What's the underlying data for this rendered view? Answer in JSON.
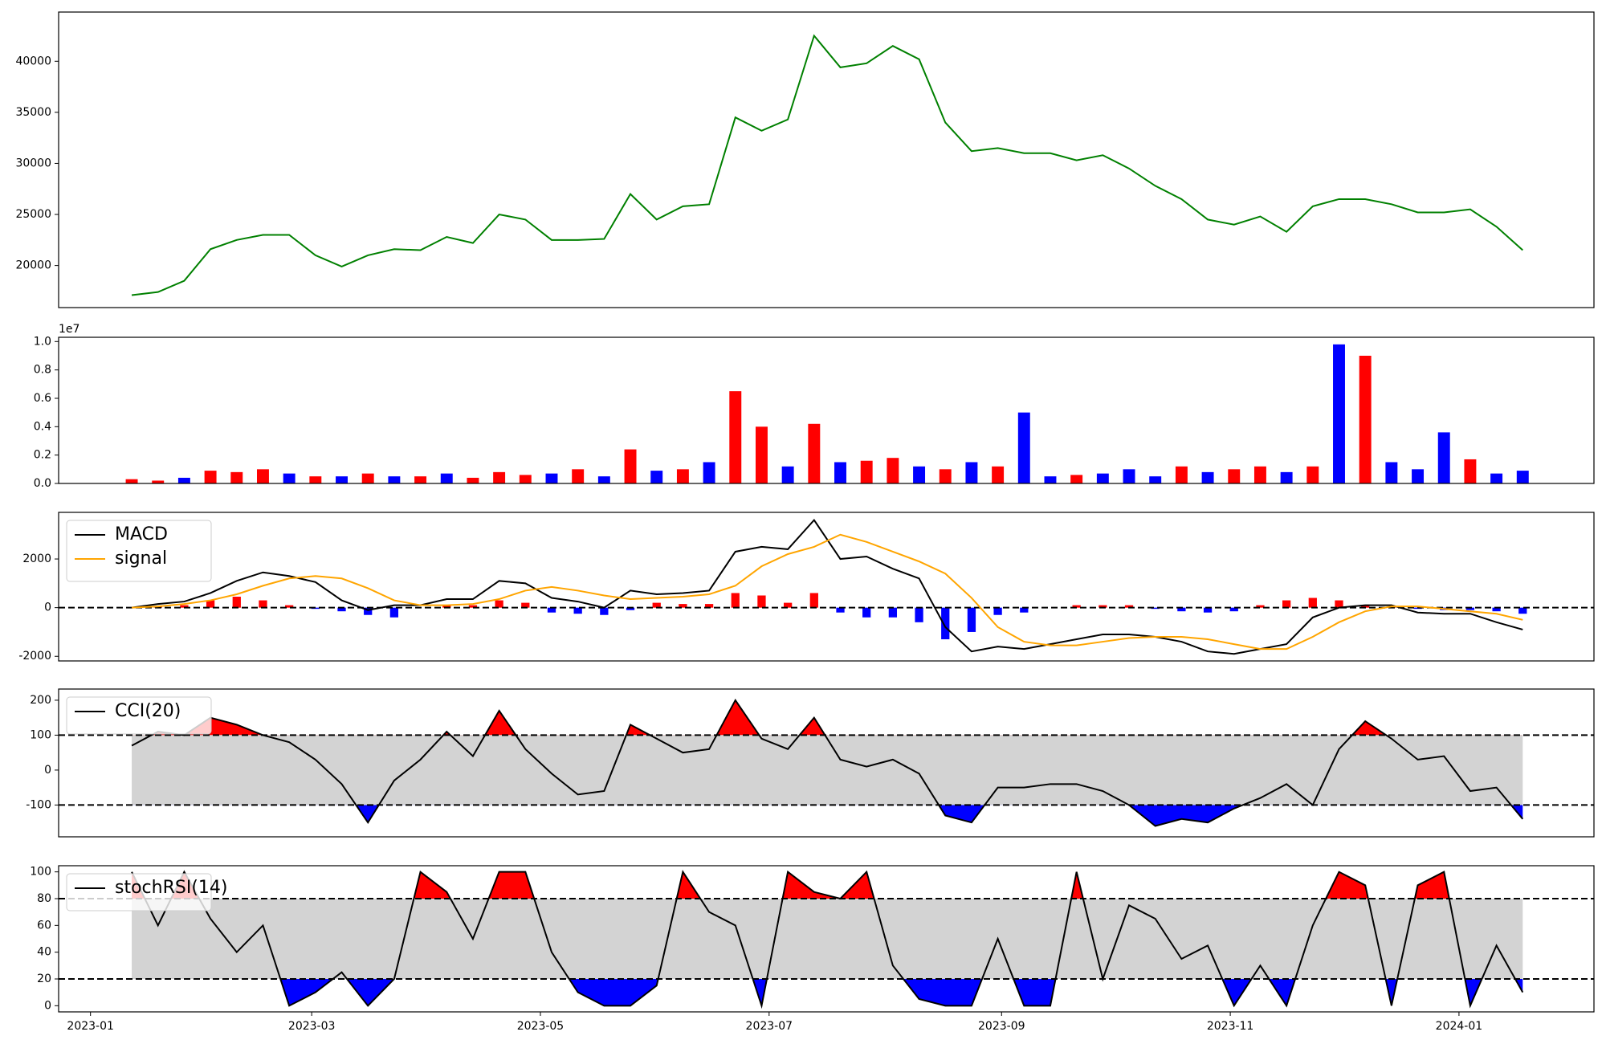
{
  "chart_data": [
    {
      "type": "line",
      "x": [
        11,
        18,
        25,
        32,
        39,
        46,
        53,
        60,
        67,
        74,
        81,
        88,
        95,
        102,
        109,
        116,
        123,
        130,
        137,
        144,
        151,
        158,
        165,
        172,
        179,
        186,
        193,
        200,
        207,
        214,
        221,
        228,
        235,
        242,
        249,
        256,
        263,
        270,
        277,
        284,
        291,
        298,
        305,
        312,
        319,
        326,
        333,
        340,
        347,
        354,
        361,
        368,
        375,
        382
      ],
      "xlim": [
        -8.5,
        401
      ],
      "ylim": [
        15880,
        44820
      ],
      "yticks": [
        20000,
        25000,
        30000,
        35000,
        40000
      ],
      "series": [
        {
          "color": "#008000",
          "values": [
            17100,
            17400,
            18500,
            21600,
            22500,
            23000,
            23000,
            21000,
            19900,
            21000,
            21600,
            21500,
            22800,
            22200,
            25000,
            24500,
            22500,
            22500,
            22600,
            27000,
            24500,
            25800,
            26000,
            34500,
            33200,
            34300,
            42500,
            39400,
            39800,
            41500,
            40200,
            34000,
            31200,
            31500,
            31000,
            31000,
            30300,
            30800,
            29500,
            27800,
            26500,
            24500,
            24000,
            24800,
            23300,
            25800,
            26500,
            26500,
            26000,
            25200,
            25200,
            25500,
            23800,
            21500
          ]
        }
      ]
    },
    {
      "type": "bar",
      "ylim": [
        0,
        1.03
      ],
      "yticks": [
        {
          "value": 0,
          "label": "0.0"
        },
        {
          "value": 0.2,
          "label": "0.2"
        },
        {
          "value": 0.4,
          "label": "0.4"
        },
        {
          "value": 0.6,
          "label": "0.6"
        },
        {
          "value": 0.8,
          "label": "0.8"
        },
        {
          "value": 1,
          "label": "1.0"
        }
      ],
      "y_offset_label": "1e7",
      "values": [
        0.03,
        0.02,
        0.04,
        0.09,
        0.08,
        0.1,
        0.07,
        0.05,
        0.05,
        0.07,
        0.05,
        0.05,
        0.07,
        0.04,
        0.08,
        0.06,
        0.07,
        0.1,
        0.05,
        0.24,
        0.09,
        0.1,
        0.15,
        0.65,
        0.4,
        0.12,
        0.42,
        0.15,
        0.16,
        0.18,
        0.12,
        0.1,
        0.15,
        0.12,
        0.5,
        0.05,
        0.06,
        0.07,
        0.1,
        0.05,
        0.12,
        0.08,
        0.1,
        0.12,
        0.08,
        0.12,
        0.98,
        0.9,
        0.15,
        0.1,
        0.36,
        0.17,
        0.07,
        0.09
      ],
      "colors": [
        "red",
        "red",
        "blue",
        "red",
        "red",
        "red",
        "blue",
        "red",
        "blue",
        "red",
        "blue",
        "red",
        "blue",
        "red",
        "red",
        "red",
        "blue",
        "red",
        "blue",
        "red",
        "blue",
        "red",
        "blue",
        "red",
        "red",
        "blue",
        "red",
        "blue",
        "red",
        "red",
        "blue",
        "red",
        "blue",
        "red",
        "blue",
        "blue",
        "red",
        "blue",
        "blue",
        "blue",
        "red",
        "blue",
        "red",
        "red",
        "blue",
        "red",
        "blue",
        "red",
        "blue",
        "blue",
        "blue",
        "red",
        "blue",
        "blue"
      ]
    },
    {
      "type": "macd",
      "ylim": [
        -2190,
        3916
      ],
      "yticks": [
        -2000,
        0,
        2000
      ],
      "hline": 0,
      "hist": [
        0,
        50,
        100,
        300,
        450,
        300,
        100,
        -50,
        -150,
        -300,
        -400,
        0,
        100,
        100,
        300,
        200,
        -200,
        -250,
        -300,
        -100,
        200,
        150,
        150,
        600,
        500,
        200,
        600,
        -200,
        -400,
        -400,
        -600,
        -1300,
        -1000,
        -300,
        -200,
        0,
        100,
        100,
        100,
        -50,
        -150,
        -200,
        -150,
        100,
        300,
        400,
        300,
        100,
        50,
        -50,
        -100,
        -100,
        -150,
        -250
      ],
      "hist_colors": [
        "red",
        "blue"
      ],
      "series": [
        {
          "name": "MACD",
          "color": "#000000",
          "values": [
            0,
            150,
            250,
            600,
            1100,
            1450,
            1300,
            1050,
            300,
            -100,
            100,
            100,
            350,
            350,
            1100,
            1000,
            400,
            250,
            0,
            700,
            550,
            600,
            700,
            2300,
            2500,
            2400,
            3600,
            2000,
            2100,
            1600,
            1200,
            -800,
            -1800,
            -1600,
            -1700,
            -1500,
            -1300,
            -1100,
            -1100,
            -1200,
            -1400,
            -1800,
            -1900,
            -1700,
            -1500,
            -400,
            0,
            100,
            100,
            -200,
            -250,
            -250,
            -600,
            -900
          ]
        },
        {
          "name": "signal",
          "color": "#ffa500",
          "values": [
            0,
            50,
            150,
            300,
            550,
            900,
            1200,
            1300,
            1200,
            800,
            300,
            100,
            100,
            150,
            350,
            700,
            850,
            700,
            500,
            350,
            400,
            450,
            550,
            900,
            1700,
            2200,
            2500,
            3000,
            2700,
            2300,
            1900,
            1400,
            400,
            -800,
            -1400,
            -1550,
            -1550,
            -1400,
            -1250,
            -1200,
            -1200,
            -1300,
            -1500,
            -1700,
            -1700,
            -1200,
            -600,
            -150,
            50,
            50,
            -50,
            -150,
            -250,
            -500
          ]
        }
      ]
    },
    {
      "type": "oscillator",
      "ylim": [
        -191,
        232
      ],
      "yticks": [
        -100,
        0,
        100,
        200
      ],
      "band_color": "#d3d3d3",
      "fills": [
        {
          "above": 100,
          "color": "red"
        },
        {
          "below": -100,
          "color": "blue"
        }
      ],
      "series": [
        {
          "name": "CCI(20)",
          "color": "#000000",
          "values": [
            70,
            110,
            100,
            150,
            130,
            100,
            80,
            30,
            -40,
            -150,
            -30,
            30,
            110,
            40,
            170,
            60,
            -10,
            -70,
            -60,
            130,
            90,
            50,
            60,
            200,
            90,
            60,
            150,
            30,
            10,
            30,
            -10,
            -130,
            -150,
            -50,
            -50,
            -40,
            -40,
            -60,
            -100,
            -160,
            -140,
            -150,
            -110,
            -80,
            -40,
            -100,
            60,
            140,
            90,
            30,
            40,
            -60,
            -50,
            -140
          ]
        }
      ]
    },
    {
      "type": "oscillator",
      "ylim": [
        -4.6,
        104.6
      ],
      "yticks": [
        0,
        20,
        40,
        60,
        80,
        100
      ],
      "band_color": "#d3d3d3",
      "fills": [
        {
          "above": 80,
          "color": "red"
        },
        {
          "below": 20,
          "color": "blue"
        }
      ],
      "series": [
        {
          "name": "stochRSI(14)",
          "color": "#000000",
          "values": [
            100,
            60,
            100,
            65,
            40,
            60,
            0,
            10,
            25,
            0,
            20,
            100,
            85,
            50,
            100,
            100,
            40,
            10,
            0,
            0,
            15,
            100,
            70,
            60,
            0,
            100,
            85,
            80,
            100,
            30,
            5,
            0,
            0,
            50,
            0,
            0,
            100,
            20,
            75,
            65,
            35,
            45,
            0,
            30,
            0,
            60,
            100,
            90,
            0,
            90,
            100,
            0,
            45,
            10
          ]
        }
      ],
      "xticks": [
        {
          "value": 0,
          "label": "2023-01"
        },
        {
          "value": 59,
          "label": "2023-03"
        },
        {
          "value": 120,
          "label": "2023-05"
        },
        {
          "value": 181,
          "label": "2023-07"
        },
        {
          "value": 243,
          "label": "2023-09"
        },
        {
          "value": 304,
          "label": "2023-11"
        },
        {
          "value": 365,
          "label": "2024-01"
        }
      ]
    }
  ]
}
